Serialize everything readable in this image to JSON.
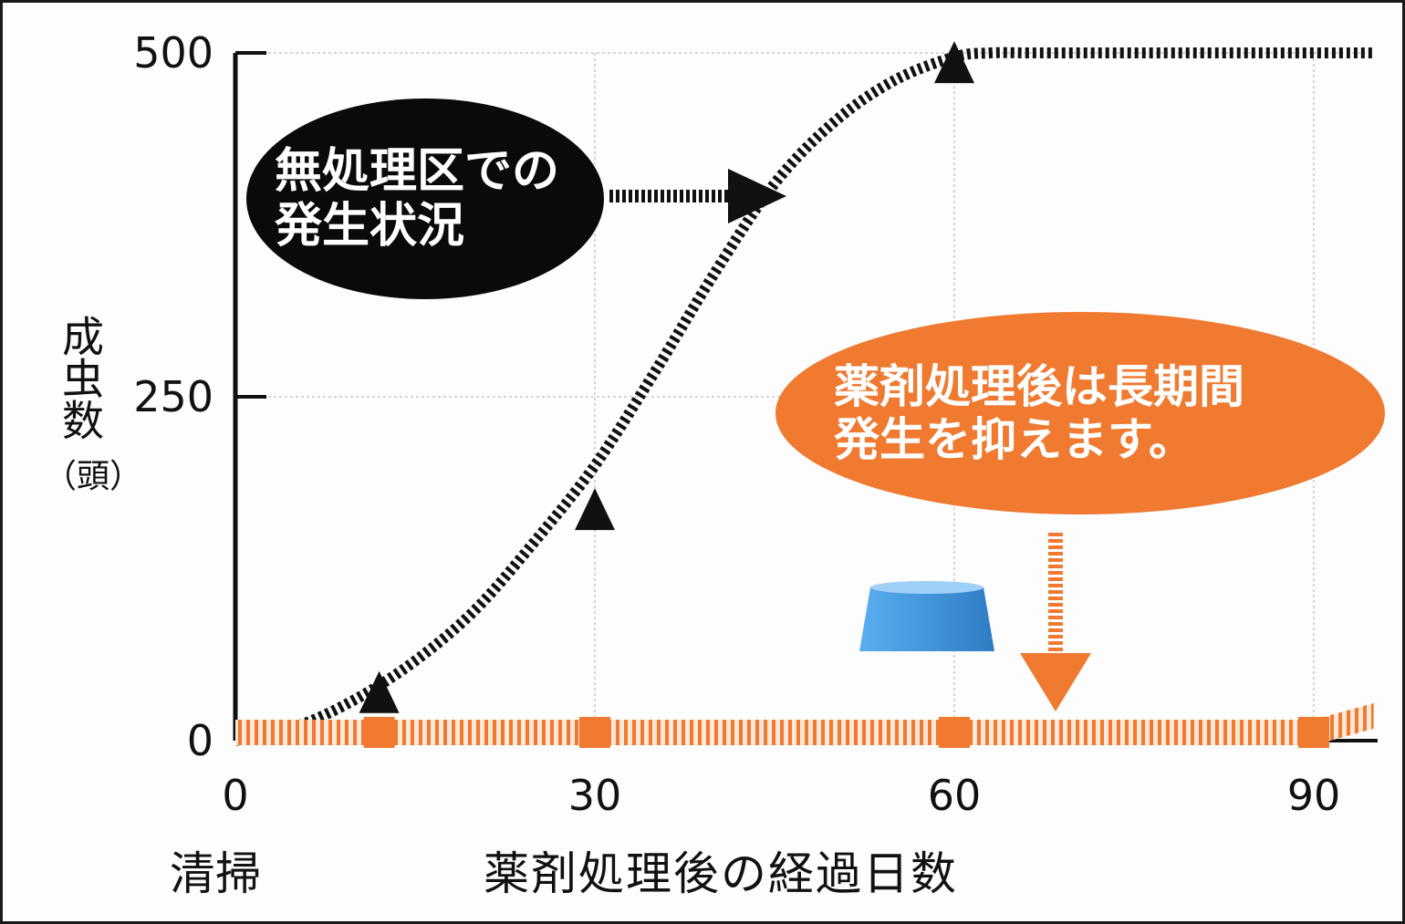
{
  "chart_data": {
    "type": "line",
    "x_ticks": [
      "0",
      "30",
      "60",
      "90"
    ],
    "x_tick_values": [
      0,
      30,
      60,
      90
    ],
    "y_ticks": [
      "500",
      "250",
      "0"
    ],
    "y_tick_values": [
      500,
      250,
      0
    ],
    "xlim": [
      0,
      95
    ],
    "ylim": [
      0,
      500
    ],
    "grid": true,
    "ylabel": "成虫数",
    "ylabel_unit": "（頭）",
    "xlabel": "薬剤処理後の経過日数",
    "xlabel_start": "清掃",
    "series": [
      {
        "key": "untreated",
        "color": "#111111",
        "style": "dotted-thick",
        "x": [
          0,
          5,
          10,
          15,
          20,
          25,
          30,
          35,
          40,
          45,
          50,
          55,
          60,
          63,
          66,
          70,
          80,
          95
        ],
        "y": [
          0,
          10,
          30,
          58,
          95,
          145,
          200,
          268,
          340,
          405,
          450,
          480,
          497,
          500,
          500,
          500,
          500,
          500
        ]
      },
      {
        "key": "treated",
        "color": "#ef7a30",
        "style": "hatched-band",
        "x": [
          0,
          12,
          30,
          60,
          90,
          95
        ],
        "y": [
          6,
          6,
          6,
          6,
          6,
          18
        ],
        "markers_x": [
          12,
          30,
          60,
          90
        ]
      }
    ],
    "arrow_markers": [
      {
        "x": 12,
        "y": 32
      },
      {
        "x": 30,
        "y": 165
      },
      {
        "x": 60,
        "y": 490
      }
    ]
  },
  "annotations": {
    "untreated_line1": "無処理区での",
    "untreated_line2": "発生状況",
    "treated_line1": "薬剤処理後は長期間",
    "treated_line2": "発生を抑えます。"
  },
  "colors": {
    "accent": "#ef7a30",
    "cup": "#3a8fd6",
    "ink": "#111111"
  }
}
